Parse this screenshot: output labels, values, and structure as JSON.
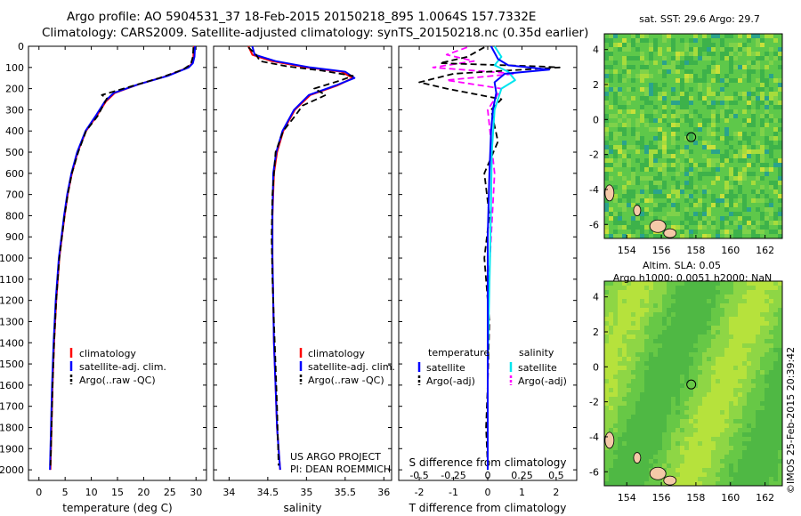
{
  "header": {
    "title_line1": "Argo profile: AO 5904531_37 18-Feb-2015 20150218_895 1.0064S 157.7332E",
    "title_line2": "Climatology: CARS2009. Satellite-adjusted climatology: synTS_20150218.nc (0.35d earlier)"
  },
  "colors": {
    "climatology": "#ff0000",
    "satellite": "#0000ff",
    "argo": "#000000",
    "sal_satellite": "#00e5ee",
    "sal_argo": "#ff00ff"
  },
  "depth_ticks": [
    "0",
    "100",
    "200",
    "300",
    "400",
    "500",
    "600",
    "700",
    "800",
    "900",
    "1000",
    "1100",
    "1200",
    "1300",
    "1400",
    "1500",
    "1600",
    "1700",
    "1800",
    "1900",
    "2000"
  ],
  "chart_data": [
    {
      "type": "line",
      "name": "temperature-panel",
      "xlabel": "temperature (deg C)",
      "ylabel": "depth",
      "xlim": [
        -2,
        32
      ],
      "ylim": [
        2050,
        0
      ],
      "xticks": [
        0,
        5,
        10,
        15,
        20,
        25,
        30
      ],
      "legend": [
        "climatology",
        "satellite-adj. clim.",
        "Argo(..raw -QC)"
      ],
      "series": [
        {
          "name": "climatology",
          "x": [
            29.6,
            29.5,
            29.3,
            28.5,
            24.5,
            19.0,
            14.5,
            12.8,
            11.0,
            9.0,
            7.4,
            6.3,
            5.5,
            4.9,
            4.4,
            3.9,
            3.3,
            2.9,
            2.6,
            2.4,
            2.3,
            2.2
          ],
          "y": [
            0,
            50,
            80,
            100,
            140,
            180,
            220,
            260,
            330,
            400,
            500,
            600,
            700,
            800,
            900,
            1000,
            1200,
            1400,
            1600,
            1800,
            1900,
            2000
          ]
        },
        {
          "name": "satellite-adj. clim.",
          "x": [
            29.8,
            29.7,
            29.4,
            28.6,
            24.6,
            19.0,
            14.3,
            12.6,
            10.8,
            8.9,
            7.3,
            6.2,
            5.4,
            4.8,
            4.3,
            3.8,
            3.2,
            2.8,
            2.5,
            2.3,
            2.2,
            2.1
          ],
          "y": [
            0,
            50,
            80,
            100,
            140,
            180,
            220,
            260,
            330,
            400,
            500,
            600,
            700,
            800,
            900,
            1000,
            1200,
            1400,
            1600,
            1800,
            1900,
            2000
          ]
        },
        {
          "name": "Argo(..raw -QC)",
          "x": [
            29.5,
            29.4,
            29.0,
            27.5,
            23.0,
            17.5,
            12.0,
            13.0,
            11.2,
            9.0,
            7.5,
            6.3,
            5.5,
            4.9,
            4.4,
            3.9,
            3.3,
            2.9,
            2.6,
            2.4,
            2.3,
            2.2
          ],
          "y": [
            5,
            50,
            85,
            110,
            150,
            190,
            230,
            245,
            330,
            400,
            500,
            600,
            700,
            800,
            900,
            1000,
            1200,
            1400,
            1600,
            1800,
            1900,
            1980
          ]
        }
      ]
    },
    {
      "type": "line",
      "name": "salinity-panel",
      "xlabel": "salinity",
      "ylabel": "depth",
      "xlim": [
        33.8,
        36.1
      ],
      "ylim": [
        2050,
        0
      ],
      "xticks": [
        34,
        34.5,
        35,
        35.5,
        36
      ],
      "legend": [
        "climatology",
        "satellite-adj. clim.",
        "Argo(..raw -QC)"
      ],
      "series": [
        {
          "name": "climatology",
          "x": [
            34.25,
            34.3,
            34.55,
            35.0,
            35.45,
            35.6,
            35.4,
            35.05,
            34.85,
            34.7,
            34.62,
            34.58,
            34.56,
            34.56,
            34.57,
            34.58,
            34.6,
            34.62,
            34.64,
            34.66
          ],
          "y": [
            0,
            40,
            70,
            100,
            120,
            150,
            185,
            230,
            300,
            400,
            500,
            600,
            800,
            1000,
            1200,
            1400,
            1600,
            1800,
            1900,
            2000
          ]
        },
        {
          "name": "satellite-adj. clim.",
          "x": [
            34.3,
            34.33,
            34.6,
            35.05,
            35.5,
            35.62,
            35.38,
            35.03,
            34.84,
            34.69,
            34.61,
            34.57,
            34.56,
            34.56,
            34.57,
            34.58,
            34.6,
            34.62,
            34.64,
            34.66
          ],
          "y": [
            0,
            40,
            70,
            100,
            120,
            150,
            185,
            230,
            300,
            400,
            500,
            600,
            800,
            1000,
            1200,
            1400,
            1600,
            1800,
            1900,
            2000
          ]
        },
        {
          "name": "Argo(..raw -QC)",
          "x": [
            34.25,
            34.35,
            34.4,
            34.75,
            35.2,
            35.6,
            35.45,
            35.1,
            35.25,
            34.95,
            34.85,
            34.7,
            34.6,
            34.56,
            34.55,
            34.56,
            34.58,
            34.6,
            34.62,
            34.64
          ],
          "y": [
            5,
            40,
            70,
            95,
            115,
            140,
            160,
            200,
            230,
            280,
            330,
            400,
            500,
            700,
            900,
            1100,
            1300,
            1500,
            1700,
            1980
          ]
        }
      ],
      "annotations": [
        "US ARGO PROJECT",
        "PI: DEAN ROEMMICH"
      ]
    },
    {
      "type": "line",
      "name": "difference-panel",
      "xlabel": "T difference from climatology",
      "xlabel_top": "S difference from climatology",
      "xlim": [
        -2.6,
        2.6
      ],
      "ylim": [
        2050,
        0
      ],
      "xticks_T": [
        -2,
        -1,
        0,
        1,
        2
      ],
      "xticks_S": [
        "-0.5",
        "-0.25",
        "0",
        "0.25",
        "0.5"
      ],
      "legend_headers": [
        "temperature",
        "salinity"
      ],
      "legend": [
        "satellite",
        "Argo(-adj)",
        "satellite",
        "Argo(-adj)"
      ],
      "series": [
        {
          "name": "T satellite",
          "x": [
            0.1,
            0.3,
            0.6,
            1.2,
            1.8,
            0.5,
            0.2,
            0.25,
            0.15,
            0.1,
            0.05,
            0.0,
            0.0,
            0.0
          ],
          "y": [
            0,
            60,
            90,
            100,
            110,
            130,
            170,
            220,
            300,
            400,
            600,
            900,
            1400,
            2000
          ]
        },
        {
          "name": "T Argo(-adj)",
          "x": [
            -0.1,
            -0.6,
            -1.4,
            1.5,
            2.1,
            -1.0,
            -2.0,
            -1.2,
            0.4,
            0.1,
            0.3,
            -0.1,
            0.05,
            -0.1,
            0.05,
            0.0,
            -0.05,
            0.0
          ],
          "y": [
            5,
            50,
            80,
            95,
            100,
            130,
            170,
            200,
            250,
            300,
            450,
            600,
            800,
            1000,
            1300,
            1600,
            1800,
            1980
          ]
        },
        {
          "name": "S satellite",
          "x": [
            0.05,
            0.1,
            0.05,
            0.15,
            0.2,
            0.1,
            0.05,
            0.03,
            0.02,
            0.0,
            0.0
          ],
          "y": [
            0,
            50,
            90,
            120,
            160,
            200,
            300,
            500,
            900,
            1500,
            2000
          ]
        },
        {
          "name": "S Argo(-adj)",
          "x": [
            -0.15,
            -0.3,
            -0.1,
            -0.4,
            0.2,
            -0.3,
            0.1,
            0.0,
            0.05,
            0.0,
            0.0
          ],
          "y": [
            5,
            40,
            70,
            100,
            130,
            160,
            200,
            300,
            600,
            1200,
            1980
          ]
        }
      ],
      "tick_scale": {
        "T_unit_per_S_unit": 4
      }
    },
    {
      "type": "heatmap",
      "name": "sst-map",
      "title": "sat. SST: 29.6  Argo: 29.7",
      "xticks": [
        154,
        156,
        158,
        160,
        162
      ],
      "yticks": [
        4,
        2,
        0,
        -2,
        -4,
        -6
      ],
      "xlim": [
        152.7,
        163.0
      ],
      "ylim": [
        -6.8,
        4.9
      ],
      "argo_position": [
        157.73,
        -1.01
      ]
    },
    {
      "type": "heatmap",
      "name": "sla-map",
      "title": "Altim. SLA: 0.05",
      "subtitle": "Argo h1000: 0.0051 h2000: NaN",
      "xticks": [
        154,
        156,
        158,
        160,
        162
      ],
      "yticks": [
        4,
        2,
        0,
        -2,
        -4,
        -6
      ],
      "xlim": [
        152.7,
        163.0
      ],
      "ylim": [
        -6.8,
        4.9
      ],
      "argo_position": [
        157.73,
        -1.01
      ]
    }
  ],
  "credit": "©IMOS 25-Feb-2015 20:39:42"
}
